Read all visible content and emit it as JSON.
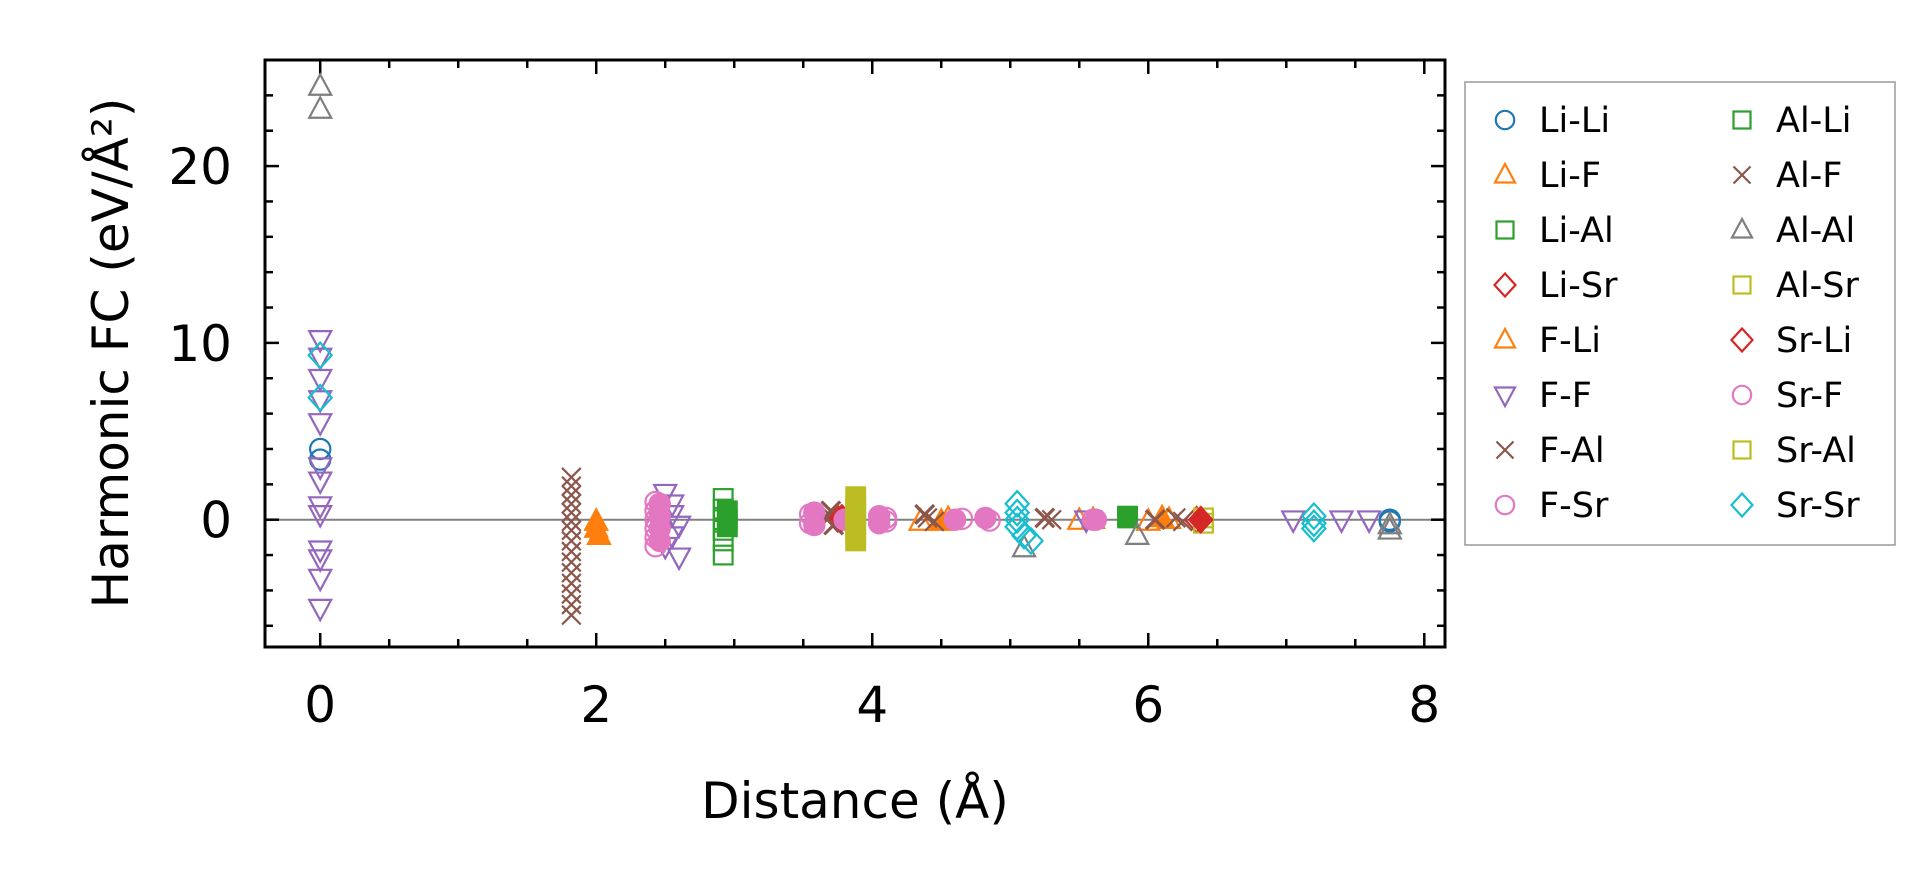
{
  "chart_data": {
    "type": "scatter",
    "xlabel": "Distance (Å)",
    "ylabel": "Harmonic FC (eV/Å²)",
    "xlim": [
      -0.4,
      8.15
    ],
    "ylim": [
      -7.2,
      26.0
    ],
    "x_ticks": [
      0,
      2,
      4,
      6,
      8
    ],
    "x_tick_labels": [
      "0",
      "2",
      "4",
      "6",
      "8"
    ],
    "y_ticks": [
      0,
      10,
      20
    ],
    "y_tick_labels": [
      "0",
      "10",
      "20"
    ],
    "minor_tick_step_x": 0.5,
    "minor_tick_step_y": 2,
    "zero_line": true,
    "grid": false,
    "legend_position": "outside-right",
    "legend_columns": 2,
    "series": [
      {
        "name": "Li-Li",
        "marker": "circle",
        "color": "#1f77b4",
        "filled": false,
        "points": [
          [
            0,
            4.0
          ],
          [
            0,
            3.4
          ],
          [
            7.75,
            0.0
          ],
          [
            7.75,
            -0.1
          ]
        ]
      },
      {
        "name": "Li-F",
        "marker": "triangle-up",
        "color": "#ff7f0e",
        "filled": false,
        "points": [
          [
            4.35,
            -0.1
          ],
          [
            4.55,
            0.05
          ],
          [
            5.5,
            -0.05
          ],
          [
            6.0,
            -0.1
          ],
          [
            6.15,
            0.0
          ]
        ]
      },
      {
        "name": "Li-Al",
        "marker": "square",
        "color": "#2ca02c",
        "filled": false,
        "points": [
          [
            2.92,
            1.2
          ],
          [
            2.92,
            0.6
          ],
          [
            2.92,
            0.0
          ],
          [
            2.92,
            -0.6
          ],
          [
            2.92,
            -1.2
          ],
          [
            2.92,
            -2.0
          ],
          [
            5.85,
            0.2
          ]
        ]
      },
      {
        "name": "Li-Sr",
        "marker": "diamond",
        "color": "#d62728",
        "filled": false,
        "points": [
          [
            3.75,
            0.05
          ],
          [
            6.35,
            0.0
          ]
        ]
      },
      {
        "name": "F-Li",
        "marker": "triangle-up",
        "color": "#ff7f0e",
        "filled": true,
        "points": [
          [
            2.0,
            -0.1
          ],
          [
            2.0,
            -0.5
          ],
          [
            2.02,
            -0.9
          ],
          [
            4.5,
            -0.1
          ],
          [
            5.6,
            0.0
          ],
          [
            6.1,
            0.1
          ]
        ]
      },
      {
        "name": "F-F",
        "marker": "triangle-down",
        "color": "#9467bd",
        "filled": false,
        "points": [
          [
            0,
            10.2
          ],
          [
            0,
            9.2
          ],
          [
            0,
            8.0
          ],
          [
            0,
            6.8
          ],
          [
            0,
            5.5
          ],
          [
            0,
            3.0
          ],
          [
            0,
            2.2
          ],
          [
            0,
            0.8
          ],
          [
            0,
            0.3
          ],
          [
            0,
            -1.7
          ],
          [
            0,
            -2.2
          ],
          [
            0,
            -3.3
          ],
          [
            0,
            -5.0
          ],
          [
            2.5,
            1.5
          ],
          [
            2.55,
            0.9
          ],
          [
            2.55,
            0.3
          ],
          [
            2.6,
            -0.3
          ],
          [
            2.55,
            -0.9
          ],
          [
            2.5,
            -1.5
          ],
          [
            2.6,
            -2.1
          ],
          [
            5.55,
            0.0
          ],
          [
            7.05,
            0.0
          ],
          [
            7.4,
            0.0
          ],
          [
            7.6,
            0.0
          ]
        ]
      },
      {
        "name": "F-Al",
        "marker": "x",
        "color": "#8c564b",
        "filled": false,
        "points": [
          [
            1.82,
            2.4
          ],
          [
            1.82,
            1.9
          ],
          [
            1.82,
            1.4
          ],
          [
            1.82,
            0.9
          ],
          [
            1.82,
            0.4
          ],
          [
            1.82,
            -0.1
          ],
          [
            1.82,
            -0.6
          ],
          [
            1.82,
            -1.2
          ],
          [
            1.82,
            -1.8
          ],
          [
            1.82,
            -2.4
          ],
          [
            1.82,
            -3.0
          ],
          [
            1.82,
            -3.6
          ],
          [
            1.82,
            -4.2
          ],
          [
            1.82,
            -4.8
          ],
          [
            1.82,
            -5.4
          ],
          [
            3.7,
            0.2
          ],
          [
            3.75,
            -0.1
          ],
          [
            4.4,
            0.1
          ],
          [
            4.45,
            -0.1
          ],
          [
            5.3,
            0.0
          ],
          [
            6.2,
            0.1
          ],
          [
            6.25,
            -0.1
          ]
        ]
      },
      {
        "name": "F-Sr",
        "marker": "circle",
        "color": "#e377c2",
        "filled": false,
        "points": [
          [
            2.43,
            1.0
          ],
          [
            2.43,
            0.5
          ],
          [
            2.43,
            0.0
          ],
          [
            2.43,
            -0.5
          ],
          [
            2.43,
            -1.0
          ],
          [
            2.43,
            -1.5
          ],
          [
            3.55,
            0.3
          ],
          [
            3.55,
            -0.2
          ],
          [
            4.1,
            0.1
          ],
          [
            4.1,
            -0.1
          ],
          [
            4.65,
            0.05
          ],
          [
            4.85,
            -0.05
          ],
          [
            5.6,
            0.0
          ]
        ]
      },
      {
        "name": "Al-Li",
        "marker": "square",
        "color": "#2ca02c",
        "filled": true,
        "points": [
          [
            2.95,
            0.5
          ],
          [
            2.95,
            0.0
          ],
          [
            2.95,
            -0.4
          ],
          [
            5.85,
            0.1
          ]
        ]
      },
      {
        "name": "Al-F",
        "marker": "x",
        "color": "#8c564b",
        "filled": true,
        "points": [
          [
            3.7,
            0.5
          ],
          [
            3.72,
            -0.3
          ],
          [
            4.38,
            0.3
          ],
          [
            5.25,
            0.1
          ],
          [
            6.05,
            0.0
          ]
        ]
      },
      {
        "name": "Al-Al",
        "marker": "triangle-up",
        "color": "#7f7f7f",
        "filled": false,
        "points": [
          [
            0,
            24.5
          ],
          [
            0,
            23.2
          ],
          [
            5.1,
            -1.6
          ],
          [
            5.92,
            -0.9
          ],
          [
            7.75,
            -0.6
          ],
          [
            7.75,
            -0.3
          ]
        ]
      },
      {
        "name": "Al-Sr",
        "marker": "square",
        "color": "#bcbd22",
        "filled": false,
        "points": [
          [
            6.4,
            -0.2
          ],
          [
            6.4,
            0.1
          ]
        ]
      },
      {
        "name": "Sr-Li",
        "marker": "diamond",
        "color": "#d62728",
        "filled": true,
        "points": [
          [
            3.78,
            0.1
          ],
          [
            6.38,
            0.0
          ]
        ]
      },
      {
        "name": "Sr-F",
        "marker": "circle",
        "color": "#e377c2",
        "filled": true,
        "points": [
          [
            2.46,
            0.9
          ],
          [
            2.46,
            0.2
          ],
          [
            2.46,
            -0.5
          ],
          [
            2.46,
            -1.2
          ],
          [
            3.58,
            0.4
          ],
          [
            3.58,
            -0.3
          ],
          [
            3.8,
            0.0
          ],
          [
            4.05,
            0.2
          ],
          [
            4.05,
            -0.2
          ],
          [
            4.6,
            0.0
          ],
          [
            4.82,
            0.1
          ],
          [
            5.62,
            0.0
          ]
        ]
      },
      {
        "name": "Sr-Al",
        "marker": "square",
        "color": "#bcbd22",
        "filled": true,
        "points": [
          [
            3.88,
            1.3
          ],
          [
            3.88,
            0.8
          ],
          [
            3.88,
            0.3
          ],
          [
            3.88,
            -0.2
          ],
          [
            3.88,
            -0.7
          ],
          [
            3.88,
            -1.2
          ]
        ]
      },
      {
        "name": "Sr-Sr",
        "marker": "diamond",
        "color": "#17becf",
        "filled": false,
        "points": [
          [
            0,
            9.3
          ],
          [
            0,
            6.9
          ],
          [
            5.05,
            0.9
          ],
          [
            5.05,
            0.4
          ],
          [
            5.05,
            0.0
          ],
          [
            5.05,
            -0.4
          ],
          [
            5.1,
            -0.9
          ],
          [
            5.15,
            -1.2
          ],
          [
            7.2,
            0.2
          ],
          [
            7.2,
            -0.2
          ],
          [
            7.2,
            -0.5
          ]
        ]
      }
    ]
  }
}
